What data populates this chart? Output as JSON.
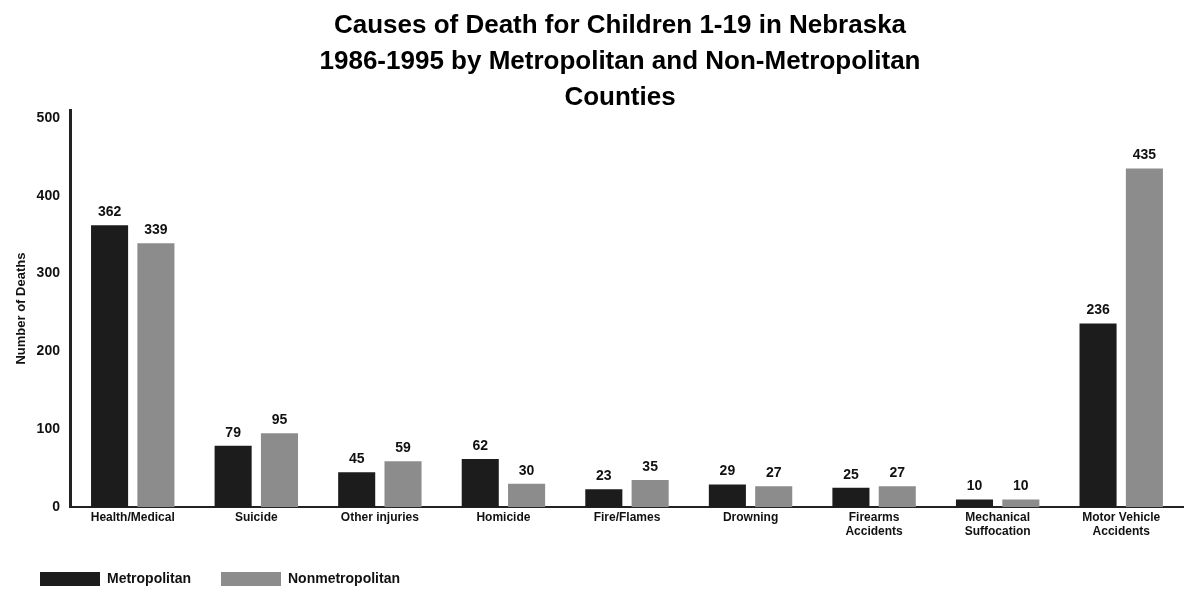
{
  "chart_data": {
    "type": "bar",
    "title": "Causes of Death for Children 1-19 in Nebraska 1986-1995 by Metropolitan and Non-Metropolitan Counties",
    "ylabel": "Number of Deaths",
    "categories": [
      "Health/Medical",
      "Suicide",
      "Other injuries",
      "Homicide",
      "Fire/Flames",
      "Drowning",
      "Firearms Accidents",
      "Mechanical Suffocation",
      "Motor Vehicle Accidents"
    ],
    "series": [
      {
        "name": "Metropolitan",
        "color": "#1c1c1c",
        "values": [
          362,
          79,
          45,
          62,
          23,
          29,
          25,
          10,
          236
        ]
      },
      {
        "name": "Nonmetropolitan",
        "color": "#8c8c8c",
        "values": [
          339,
          95,
          59,
          30,
          35,
          27,
          27,
          10,
          435
        ]
      }
    ],
    "ylim": [
      0,
      510
    ],
    "yticks": [
      0,
      100,
      200,
      300,
      400,
      500
    ],
    "grid": false,
    "legend": "bottom left",
    "data_labels": true
  }
}
